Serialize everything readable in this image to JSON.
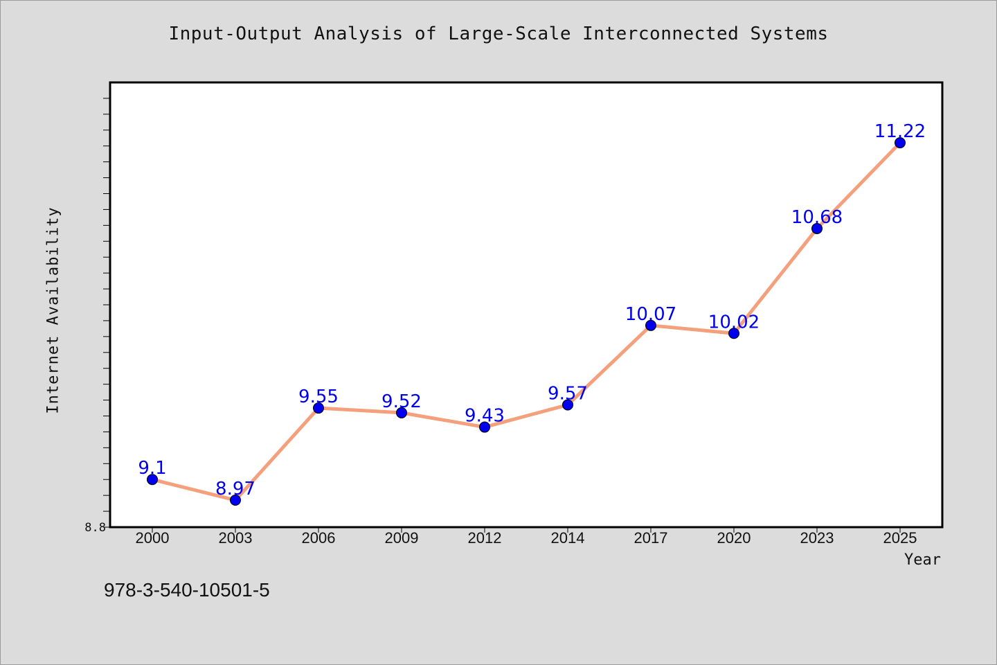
{
  "chart_data": {
    "type": "line",
    "title": "Input-Output Analysis of Large-Scale Interconnected Systems",
    "xlabel": "Year",
    "ylabel": "Internet Availability",
    "categories": [
      "2000",
      "2003",
      "2006",
      "2009",
      "2012",
      "2014",
      "2017",
      "2020",
      "2023",
      "2025"
    ],
    "series": [
      {
        "values": [
          9.1,
          8.97,
          9.55,
          9.52,
          9.43,
          9.57,
          10.07,
          10.02,
          10.68,
          11.22
        ]
      }
    ],
    "data_labels": [
      "9.1",
      "8.97",
      "9.55",
      "9.52",
      "9.43",
      "9.57",
      "10.07",
      "10.02",
      "10.68",
      "11.22"
    ],
    "ylim": [
      8.8,
      11.6
    ],
    "ytick_labels": [
      "8.8"
    ],
    "grid": false,
    "colors": {
      "line": "#f4a07c",
      "marker": "#0000ee",
      "label": "#0000ee",
      "background": "#dcdcdc",
      "plot_bg": "#ffffff"
    }
  },
  "footer": {
    "isbn": "978-3-540-10501-5"
  }
}
